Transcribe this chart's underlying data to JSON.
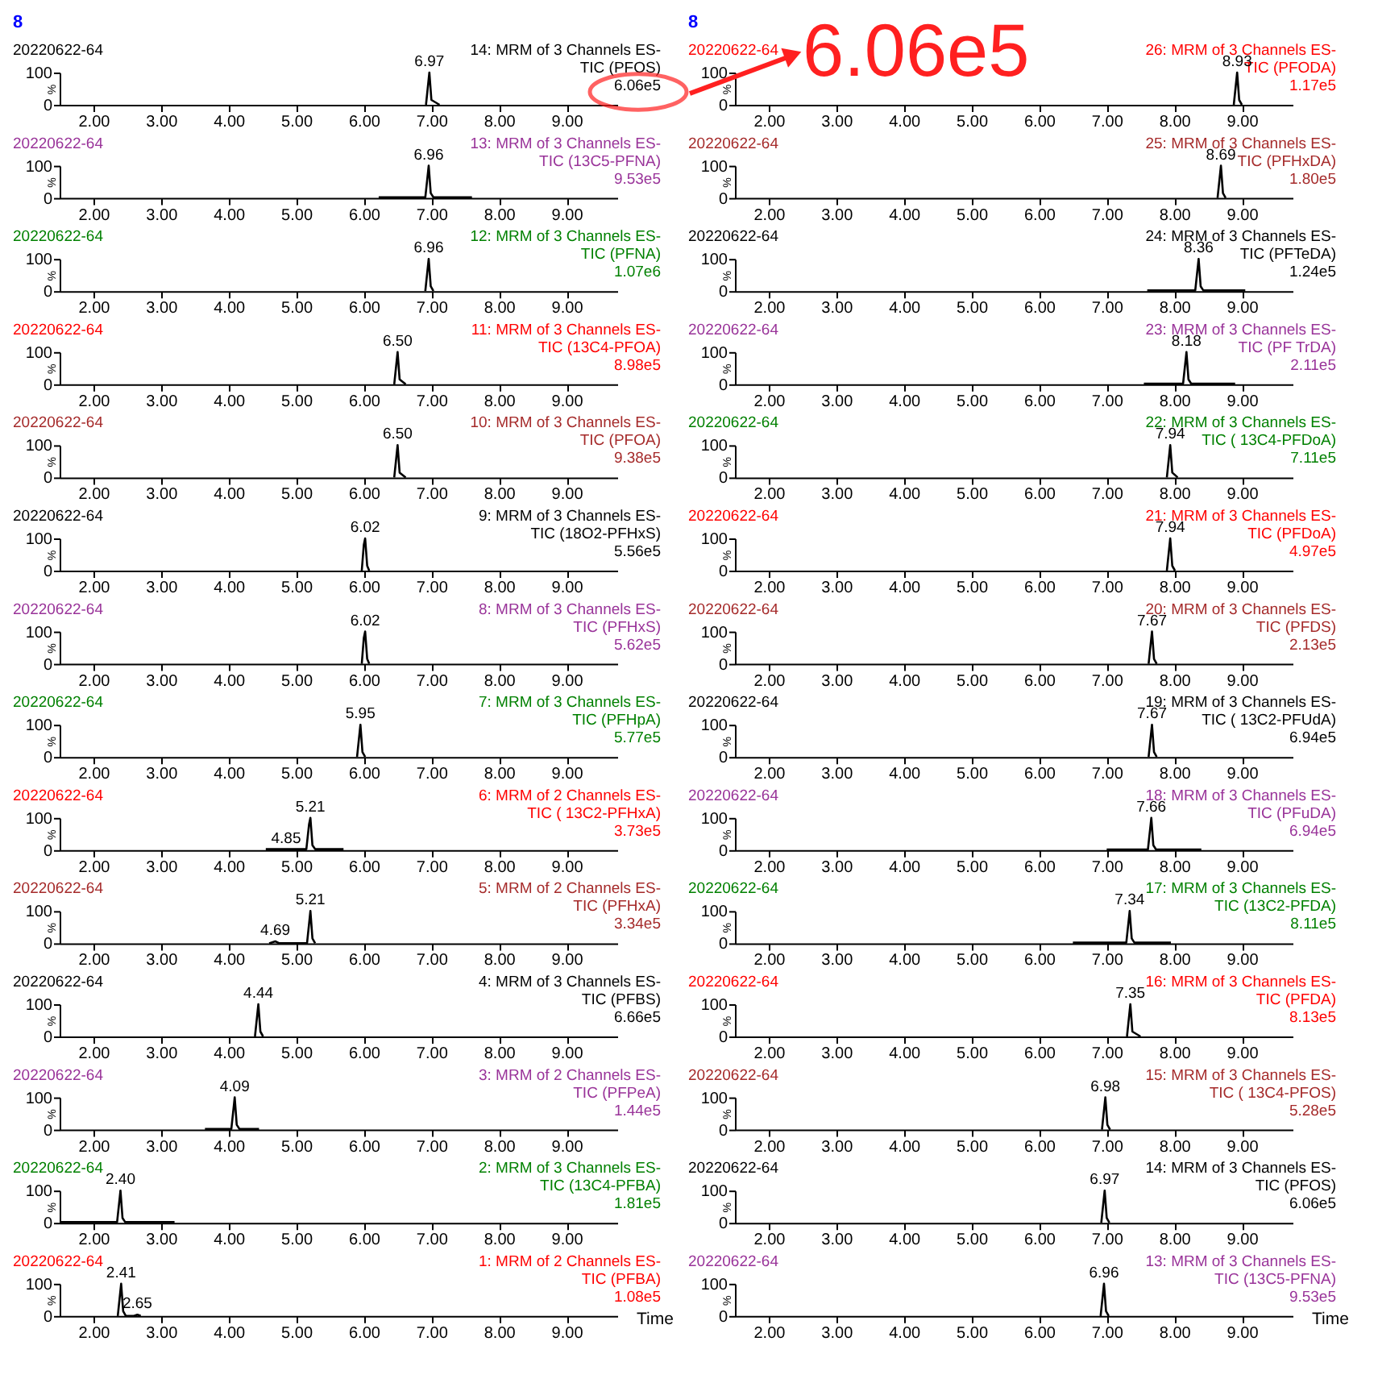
{
  "chart_data": [
    {
      "type": "line",
      "title": "20220622-64",
      "annotations": [
        "14: MRM of 3 Channels ES-",
        "TIC (PFOS)",
        "6.06e5",
        "8",
        {
          "text": "6.97",
          "x": 6.97,
          "y": 100
        }
      ],
      "series": [
        {
          "color": "#000000",
          "x": [
            6.92,
            6.96,
            6.97,
            7.0,
            7.12
          ],
          "values": [
            0,
            80,
            100,
            15,
            0
          ]
        }
      ],
      "xlim": [
        1.5,
        9.75
      ],
      "xticks": [
        {
          "value": 2,
          "label": "2.00"
        },
        {
          "value": 3,
          "label": "3.00"
        },
        {
          "value": 4,
          "label": "4.00"
        },
        {
          "value": 5,
          "label": "5.00"
        },
        {
          "value": 6,
          "label": "6.00"
        },
        {
          "value": 7,
          "label": "7.00"
        },
        {
          "value": 8,
          "label": "8.00"
        },
        {
          "value": 9,
          "label": "9.00"
        }
      ],
      "ylim": [
        0,
        100
      ],
      "yticks": [
        0,
        100
      ],
      "ylabel": "%"
    },
    {
      "type": "line",
      "title": "20220622-64",
      "annotations": [
        "13: MRM of 3 Channels ES-",
        "TIC (13C5-PFNA)",
        "9.53e5",
        {
          "text": "6.96",
          "x": 6.96,
          "y": 100
        }
      ],
      "series": [
        {
          "color": "#000000",
          "x": [
            6.22,
            6.91,
            6.95,
            6.96,
            6.99,
            7.03,
            7.6
          ],
          "values": [
            2,
            2,
            80,
            100,
            15,
            2,
            2
          ]
        }
      ],
      "xlim": [
        1.5,
        9.75
      ],
      "xticks": [
        {
          "value": 2,
          "label": "2.00"
        },
        {
          "value": 3,
          "label": "3.00"
        },
        {
          "value": 4,
          "label": "4.00"
        },
        {
          "value": 5,
          "label": "5.00"
        },
        {
          "value": 6,
          "label": "6.00"
        },
        {
          "value": 7,
          "label": "7.00"
        },
        {
          "value": 8,
          "label": "8.00"
        },
        {
          "value": 9,
          "label": "9.00"
        }
      ],
      "ylim": [
        0,
        100
      ],
      "yticks": [
        0,
        100
      ],
      "ylabel": "%"
    },
    {
      "type": "line",
      "title": "20220622-64",
      "annotations": [
        "12: MRM of 3 Channels ES-",
        "TIC (PFNA)",
        "1.07e6",
        {
          "text": "6.96",
          "x": 6.96,
          "y": 100
        }
      ],
      "series": [
        {
          "color": "#000000",
          "x": [
            6.91,
            6.95,
            6.96,
            6.99,
            7.03
          ],
          "values": [
            0,
            80,
            100,
            15,
            0
          ]
        }
      ],
      "xlim": [
        1.5,
        9.75
      ],
      "xticks": [
        {
          "value": 2,
          "label": "2.00"
        },
        {
          "value": 3,
          "label": "3.00"
        },
        {
          "value": 4,
          "label": "4.00"
        },
        {
          "value": 5,
          "label": "5.00"
        },
        {
          "value": 6,
          "label": "6.00"
        },
        {
          "value": 7,
          "label": "7.00"
        },
        {
          "value": 8,
          "label": "8.00"
        },
        {
          "value": 9,
          "label": "9.00"
        }
      ],
      "ylim": [
        0,
        100
      ],
      "yticks": [
        0,
        100
      ],
      "ylabel": "%"
    },
    {
      "type": "line",
      "title": "20220622-64",
      "annotations": [
        "11: MRM of 3 Channels ES-",
        "TIC (13C4-PFOA)",
        "8.98e5",
        {
          "text": "6.50",
          "x": 6.5,
          "y": 100
        }
      ],
      "series": [
        {
          "color": "#000000",
          "x": [
            6.45,
            6.49,
            6.5,
            6.53,
            6.62
          ],
          "values": [
            0,
            80,
            100,
            15,
            0
          ]
        }
      ],
      "xlim": [
        1.5,
        9.75
      ],
      "xticks": [
        {
          "value": 2,
          "label": "2.00"
        },
        {
          "value": 3,
          "label": "3.00"
        },
        {
          "value": 4,
          "label": "4.00"
        },
        {
          "value": 5,
          "label": "5.00"
        },
        {
          "value": 6,
          "label": "6.00"
        },
        {
          "value": 7,
          "label": "7.00"
        },
        {
          "value": 8,
          "label": "8.00"
        },
        {
          "value": 9,
          "label": "9.00"
        }
      ],
      "ylim": [
        0,
        100
      ],
      "yticks": [
        0,
        100
      ],
      "ylabel": "%"
    },
    {
      "type": "line",
      "title": "20220622-64",
      "annotations": [
        "10: MRM of 3 Channels ES-",
        "TIC (PFOA)",
        "9.38e5",
        {
          "text": "6.50",
          "x": 6.5,
          "y": 100
        }
      ],
      "series": [
        {
          "color": "#000000",
          "x": [
            6.45,
            6.49,
            6.5,
            6.53,
            6.62
          ],
          "values": [
            0,
            80,
            100,
            15,
            0
          ]
        }
      ],
      "xlim": [
        1.5,
        9.75
      ],
      "xticks": [
        {
          "value": 2,
          "label": "2.00"
        },
        {
          "value": 3,
          "label": "3.00"
        },
        {
          "value": 4,
          "label": "4.00"
        },
        {
          "value": 5,
          "label": "5.00"
        },
        {
          "value": 6,
          "label": "6.00"
        },
        {
          "value": 7,
          "label": "7.00"
        },
        {
          "value": 8,
          "label": "8.00"
        },
        {
          "value": 9,
          "label": "9.00"
        }
      ],
      "ylim": [
        0,
        100
      ],
      "yticks": [
        0,
        100
      ],
      "ylabel": "%"
    },
    {
      "type": "line",
      "title": "20220622-64",
      "annotations": [
        "9: MRM of 3 Channels ES-",
        "TIC (18O2-PFHxS)",
        "5.56e5",
        {
          "text": "6.02",
          "x": 6.02,
          "y": 100
        }
      ],
      "series": [
        {
          "color": "#000000",
          "x": [
            5.97,
            6.0,
            6.02,
            6.05,
            6.08
          ],
          "values": [
            0,
            80,
            100,
            15,
            0
          ]
        }
      ],
      "xlim": [
        1.5,
        9.75
      ],
      "xticks": [
        {
          "value": 2,
          "label": "2.00"
        },
        {
          "value": 3,
          "label": "3.00"
        },
        {
          "value": 4,
          "label": "4.00"
        },
        {
          "value": 5,
          "label": "5.00"
        },
        {
          "value": 6,
          "label": "6.00"
        },
        {
          "value": 7,
          "label": "7.00"
        },
        {
          "value": 8,
          "label": "8.00"
        },
        {
          "value": 9,
          "label": "9.00"
        }
      ],
      "ylim": [
        0,
        100
      ],
      "yticks": [
        0,
        100
      ],
      "ylabel": "%"
    },
    {
      "type": "line",
      "title": "20220622-64",
      "annotations": [
        "8: MRM of 3 Channels ES-",
        "TIC (PFHxS)",
        "5.62e5",
        {
          "text": "6.02",
          "x": 6.02,
          "y": 100
        }
      ],
      "series": [
        {
          "color": "#000000",
          "x": [
            5.97,
            6.0,
            6.02,
            6.05,
            6.08
          ],
          "values": [
            0,
            80,
            100,
            15,
            0
          ]
        }
      ],
      "xlim": [
        1.5,
        9.75
      ],
      "xticks": [
        {
          "value": 2,
          "label": "2.00"
        },
        {
          "value": 3,
          "label": "3.00"
        },
        {
          "value": 4,
          "label": "4.00"
        },
        {
          "value": 5,
          "label": "5.00"
        },
        {
          "value": 6,
          "label": "6.00"
        },
        {
          "value": 7,
          "label": "7.00"
        },
        {
          "value": 8,
          "label": "8.00"
        },
        {
          "value": 9,
          "label": "9.00"
        }
      ],
      "ylim": [
        0,
        100
      ],
      "yticks": [
        0,
        100
      ],
      "ylabel": "%"
    },
    {
      "type": "line",
      "title": "20220622-64",
      "annotations": [
        "7: MRM of 3 Channels ES-",
        "TIC (PFHpA)",
        "5.77e5",
        {
          "text": "5.95",
          "x": 5.95,
          "y": 100
        }
      ],
      "series": [
        {
          "color": "#000000",
          "x": [
            5.9,
            5.94,
            5.95,
            5.98,
            6.02
          ],
          "values": [
            0,
            80,
            100,
            15,
            0
          ]
        }
      ],
      "xlim": [
        1.5,
        9.75
      ],
      "xticks": [
        {
          "value": 2,
          "label": "2.00"
        },
        {
          "value": 3,
          "label": "3.00"
        },
        {
          "value": 4,
          "label": "4.00"
        },
        {
          "value": 5,
          "label": "5.00"
        },
        {
          "value": 6,
          "label": "6.00"
        },
        {
          "value": 7,
          "label": "7.00"
        },
        {
          "value": 8,
          "label": "8.00"
        },
        {
          "value": 9,
          "label": "9.00"
        }
      ],
      "ylim": [
        0,
        100
      ],
      "yticks": [
        0,
        100
      ],
      "ylabel": "%"
    },
    {
      "type": "line",
      "title": "20220622-64",
      "annotations": [
        "6: MRM of 2 Channels ES-",
        "TIC ( 13C2-PFHxA)",
        "3.73e5",
        {
          "text": "5.21",
          "x": 5.21,
          "y": 100
        },
        {
          "text": "4.85",
          "x": 4.85,
          "y": 3
        }
      ],
      "series": [
        {
          "color": "#000000",
          "x": [
            4.55,
            4.85,
            5.15,
            5.19,
            5.21,
            5.24,
            5.28,
            5.7
          ],
          "values": [
            3,
            3,
            3,
            80,
            100,
            15,
            3,
            3
          ]
        }
      ],
      "xlim": [
        1.5,
        9.75
      ],
      "xticks": [
        {
          "value": 2,
          "label": "2.00"
        },
        {
          "value": 3,
          "label": "3.00"
        },
        {
          "value": 4,
          "label": "4.00"
        },
        {
          "value": 5,
          "label": "5.00"
        },
        {
          "value": 6,
          "label": "6.00"
        },
        {
          "value": 7,
          "label": "7.00"
        },
        {
          "value": 8,
          "label": "8.00"
        },
        {
          "value": 9,
          "label": "9.00"
        }
      ],
      "ylim": [
        0,
        100
      ],
      "yticks": [
        0,
        100
      ],
      "ylabel": "%"
    },
    {
      "type": "line",
      "title": "20220622-64",
      "annotations": [
        "5: MRM of 2 Channels ES-",
        "TIC (PFHxA)",
        "3.34e5",
        {
          "text": "5.21",
          "x": 5.21,
          "y": 100
        },
        {
          "text": "4.69",
          "x": 4.69,
          "y": 6
        }
      ],
      "series": [
        {
          "color": "#000000",
          "x": [
            4.6,
            4.69,
            4.75,
            5.16,
            5.2,
            5.21,
            5.24,
            5.28
          ],
          "values": [
            0,
            6,
            0,
            0,
            80,
            100,
            15,
            0
          ]
        }
      ],
      "xlim": [
        1.5,
        9.75
      ],
      "xticks": [
        {
          "value": 2,
          "label": "2.00"
        },
        {
          "value": 3,
          "label": "3.00"
        },
        {
          "value": 4,
          "label": "4.00"
        },
        {
          "value": 5,
          "label": "5.00"
        },
        {
          "value": 6,
          "label": "6.00"
        },
        {
          "value": 7,
          "label": "7.00"
        },
        {
          "value": 8,
          "label": "8.00"
        },
        {
          "value": 9,
          "label": "9.00"
        }
      ],
      "ylim": [
        0,
        100
      ],
      "yticks": [
        0,
        100
      ],
      "ylabel": "%"
    },
    {
      "type": "line",
      "title": "20220622-64",
      "annotations": [
        "4: MRM of 3 Channels ES-",
        "TIC (PFBS)",
        "6.66e5",
        {
          "text": "4.44",
          "x": 4.44,
          "y": 100
        }
      ],
      "series": [
        {
          "color": "#000000",
          "x": [
            4.39,
            4.43,
            4.44,
            4.47,
            4.51
          ],
          "values": [
            0,
            80,
            100,
            15,
            0
          ]
        }
      ],
      "xlim": [
        1.5,
        9.75
      ],
      "xticks": [
        {
          "value": 2,
          "label": "2.00"
        },
        {
          "value": 3,
          "label": "3.00"
        },
        {
          "value": 4,
          "label": "4.00"
        },
        {
          "value": 5,
          "label": "5.00"
        },
        {
          "value": 6,
          "label": "6.00"
        },
        {
          "value": 7,
          "label": "7.00"
        },
        {
          "value": 8,
          "label": "8.00"
        },
        {
          "value": 9,
          "label": "9.00"
        }
      ],
      "ylim": [
        0,
        100
      ],
      "yticks": [
        0,
        100
      ],
      "ylabel": "%"
    },
    {
      "type": "line",
      "title": "20220622-64",
      "annotations": [
        "3: MRM of 2 Channels ES-",
        "TIC (PFPeA)",
        "1.44e5",
        {
          "text": "4.09",
          "x": 4.09,
          "y": 100
        }
      ],
      "series": [
        {
          "color": "#000000",
          "x": [
            3.65,
            4.04,
            4.08,
            4.09,
            4.12,
            4.16,
            4.45
          ],
          "values": [
            2,
            2,
            80,
            100,
            15,
            2,
            2
          ]
        }
      ],
      "xlim": [
        1.5,
        9.75
      ],
      "xticks": [
        {
          "value": 2,
          "label": "2.00"
        },
        {
          "value": 3,
          "label": "3.00"
        },
        {
          "value": 4,
          "label": "4.00"
        },
        {
          "value": 5,
          "label": "5.00"
        },
        {
          "value": 6,
          "label": "6.00"
        },
        {
          "value": 7,
          "label": "7.00"
        },
        {
          "value": 8,
          "label": "8.00"
        },
        {
          "value": 9,
          "label": "9.00"
        }
      ],
      "ylim": [
        0,
        100
      ],
      "yticks": [
        0,
        100
      ],
      "ylabel": "%"
    },
    {
      "type": "line",
      "title": "20220622-64",
      "annotations": [
        "2: MRM of 3 Channels ES-",
        "TIC (13C4-PFBA)",
        "1.81e5",
        {
          "text": "2.40",
          "x": 2.4,
          "y": 100
        }
      ],
      "series": [
        {
          "color": "#000000",
          "x": [
            1.5,
            2.35,
            2.39,
            2.4,
            2.43,
            2.47,
            3.2
          ],
          "values": [
            2,
            2,
            80,
            100,
            15,
            2,
            2
          ]
        }
      ],
      "xlim": [
        1.5,
        9.75
      ],
      "xticks": [
        {
          "value": 2,
          "label": "2.00"
        },
        {
          "value": 3,
          "label": "3.00"
        },
        {
          "value": 4,
          "label": "4.00"
        },
        {
          "value": 5,
          "label": "5.00"
        },
        {
          "value": 6,
          "label": "6.00"
        },
        {
          "value": 7,
          "label": "7.00"
        },
        {
          "value": 8,
          "label": "8.00"
        },
        {
          "value": 9,
          "label": "9.00"
        }
      ],
      "ylim": [
        0,
        100
      ],
      "yticks": [
        0,
        100
      ],
      "ylabel": "%"
    },
    {
      "type": "line",
      "title": "20220622-64",
      "annotations": [
        "1: MRM of 2 Channels ES-",
        "TIC (PFBA)",
        "1.08e5",
        {
          "text": "2.41",
          "x": 2.41,
          "y": 100
        },
        {
          "text": "2.65",
          "x": 2.65,
          "y": 4
        }
      ],
      "series": [
        {
          "color": "#000000",
          "x": [
            2.36,
            2.4,
            2.41,
            2.44,
            2.48,
            2.6,
            2.65,
            2.7
          ],
          "values": [
            0,
            80,
            100,
            15,
            0,
            0,
            4,
            0
          ]
        }
      ],
      "xlim": [
        1.5,
        9.75
      ],
      "xticks": [
        {
          "value": 2,
          "label": "2.00"
        },
        {
          "value": 3,
          "label": "3.00"
        },
        {
          "value": 4,
          "label": "4.00"
        },
        {
          "value": 5,
          "label": "5.00"
        },
        {
          "value": 6,
          "label": "6.00"
        },
        {
          "value": 7,
          "label": "7.00"
        },
        {
          "value": 8,
          "label": "8.00"
        },
        {
          "value": 9,
          "label": "9.00"
        }
      ],
      "ylim": [
        0,
        100
      ],
      "yticks": [
        0,
        100
      ],
      "ylabel": "%",
      "xlabel": "Time"
    },
    {
      "type": "line",
      "title": "20220622-64",
      "annotations": [
        "26: MRM of 3 Channels ES-",
        "TIC (PFODA)",
        "1.17e5",
        "8",
        "6.06e5",
        {
          "text": "8.93",
          "x": 8.93,
          "y": 100
        }
      ],
      "series": [
        {
          "color": "#000000",
          "x": [
            8.88,
            8.92,
            8.93,
            8.96,
            9.0
          ],
          "values": [
            0,
            80,
            100,
            15,
            0
          ]
        }
      ],
      "xlim": [
        1.5,
        9.75
      ],
      "xticks": [
        {
          "value": 2,
          "label": "2.00"
        },
        {
          "value": 3,
          "label": "3.00"
        },
        {
          "value": 4,
          "label": "4.00"
        },
        {
          "value": 5,
          "label": "5.00"
        },
        {
          "value": 6,
          "label": "6.00"
        },
        {
          "value": 7,
          "label": "7.00"
        },
        {
          "value": 8,
          "label": "8.00"
        },
        {
          "value": 9,
          "label": "9.00"
        }
      ],
      "ylim": [
        0,
        100
      ],
      "yticks": [
        0,
        100
      ],
      "ylabel": "%"
    },
    {
      "type": "line",
      "title": "20220622-64",
      "annotations": [
        "25: MRM of 3 Channels ES-",
        "TIC (PFHxDA)",
        "1.80e5",
        {
          "text": "8.69",
          "x": 8.69,
          "y": 100
        }
      ],
      "series": [
        {
          "color": "#000000",
          "x": [
            8.64,
            8.68,
            8.69,
            8.72,
            8.76
          ],
          "values": [
            0,
            80,
            100,
            15,
            0
          ]
        }
      ],
      "xlim": [
        1.5,
        9.75
      ],
      "xticks": [
        {
          "value": 2,
          "label": "2.00"
        },
        {
          "value": 3,
          "label": "3.00"
        },
        {
          "value": 4,
          "label": "4.00"
        },
        {
          "value": 5,
          "label": "5.00"
        },
        {
          "value": 6,
          "label": "6.00"
        },
        {
          "value": 7,
          "label": "7.00"
        },
        {
          "value": 8,
          "label": "8.00"
        },
        {
          "value": 9,
          "label": "9.00"
        }
      ],
      "ylim": [
        0,
        100
      ],
      "yticks": [
        0,
        100
      ],
      "ylabel": "%"
    },
    {
      "type": "line",
      "title": "20220622-64",
      "annotations": [
        "24: MRM of 3 Channels ES-",
        "TIC (PFTeDA)",
        "1.24e5",
        {
          "text": "8.36",
          "x": 8.36,
          "y": 100
        }
      ],
      "series": [
        {
          "color": "#000000",
          "x": [
            7.6,
            8.31,
            8.35,
            8.36,
            8.39,
            8.43,
            9.05
          ],
          "values": [
            2,
            2,
            80,
            100,
            15,
            2,
            2
          ]
        }
      ],
      "xlim": [
        1.5,
        9.75
      ],
      "xticks": [
        {
          "value": 2,
          "label": "2.00"
        },
        {
          "value": 3,
          "label": "3.00"
        },
        {
          "value": 4,
          "label": "4.00"
        },
        {
          "value": 5,
          "label": "5.00"
        },
        {
          "value": 6,
          "label": "6.00"
        },
        {
          "value": 7,
          "label": "7.00"
        },
        {
          "value": 8,
          "label": "8.00"
        },
        {
          "value": 9,
          "label": "9.00"
        }
      ],
      "ylim": [
        0,
        100
      ],
      "yticks": [
        0,
        100
      ],
      "ylabel": "%"
    },
    {
      "type": "line",
      "title": "20220622-64",
      "annotations": [
        "23: MRM of 3 Channels ES-",
        "TIC (PF TrDA)",
        "2.11e5",
        {
          "text": "8.18",
          "x": 8.18,
          "y": 100
        }
      ],
      "series": [
        {
          "color": "#000000",
          "x": [
            7.55,
            8.13,
            8.17,
            8.18,
            8.21,
            8.25,
            8.9
          ],
          "values": [
            2,
            2,
            80,
            100,
            15,
            2,
            2
          ]
        }
      ],
      "xlim": [
        1.5,
        9.75
      ],
      "xticks": [
        {
          "value": 2,
          "label": "2.00"
        },
        {
          "value": 3,
          "label": "3.00"
        },
        {
          "value": 4,
          "label": "4.00"
        },
        {
          "value": 5,
          "label": "5.00"
        },
        {
          "value": 6,
          "label": "6.00"
        },
        {
          "value": 7,
          "label": "7.00"
        },
        {
          "value": 8,
          "label": "8.00"
        },
        {
          "value": 9,
          "label": "9.00"
        }
      ],
      "ylim": [
        0,
        100
      ],
      "yticks": [
        0,
        100
      ],
      "ylabel": "%"
    },
    {
      "type": "line",
      "title": "20220622-64",
      "annotations": [
        "22: MRM of 3 Channels ES-",
        "TIC ( 13C4-PFDoA)",
        "7.11e5",
        {
          "text": "7.94",
          "x": 7.94,
          "y": 100
        }
      ],
      "series": [
        {
          "color": "#000000",
          "x": [
            7.89,
            7.93,
            7.94,
            7.97,
            8.05
          ],
          "values": [
            0,
            80,
            100,
            15,
            0
          ]
        }
      ],
      "xlim": [
        1.5,
        9.75
      ],
      "xticks": [
        {
          "value": 2,
          "label": "2.00"
        },
        {
          "value": 3,
          "label": "3.00"
        },
        {
          "value": 4,
          "label": "4.00"
        },
        {
          "value": 5,
          "label": "5.00"
        },
        {
          "value": 6,
          "label": "6.00"
        },
        {
          "value": 7,
          "label": "7.00"
        },
        {
          "value": 8,
          "label": "8.00"
        },
        {
          "value": 9,
          "label": "9.00"
        }
      ],
      "ylim": [
        0,
        100
      ],
      "yticks": [
        0,
        100
      ],
      "ylabel": "%"
    },
    {
      "type": "line",
      "title": "20220622-64",
      "annotations": [
        "21: MRM of 3 Channels ES-",
        "TIC (PFDoA)",
        "4.97e5",
        {
          "text": "7.94",
          "x": 7.94,
          "y": 100
        }
      ],
      "series": [
        {
          "color": "#000000",
          "x": [
            7.89,
            7.93,
            7.94,
            7.97,
            8.01
          ],
          "values": [
            0,
            80,
            100,
            15,
            0
          ]
        }
      ],
      "xlim": [
        1.5,
        9.75
      ],
      "xticks": [
        {
          "value": 2,
          "label": "2.00"
        },
        {
          "value": 3,
          "label": "3.00"
        },
        {
          "value": 4,
          "label": "4.00"
        },
        {
          "value": 5,
          "label": "5.00"
        },
        {
          "value": 6,
          "label": "6.00"
        },
        {
          "value": 7,
          "label": "7.00"
        },
        {
          "value": 8,
          "label": "8.00"
        },
        {
          "value": 9,
          "label": "9.00"
        }
      ],
      "ylim": [
        0,
        100
      ],
      "yticks": [
        0,
        100
      ],
      "ylabel": "%"
    },
    {
      "type": "line",
      "title": "20220622-64",
      "annotations": [
        "20: MRM of 3 Channels ES-",
        "TIC (PFDS)",
        "2.13e5",
        {
          "text": "7.67",
          "x": 7.67,
          "y": 100
        }
      ],
      "series": [
        {
          "color": "#000000",
          "x": [
            7.62,
            7.66,
            7.67,
            7.7,
            7.74
          ],
          "values": [
            0,
            80,
            100,
            15,
            0
          ]
        }
      ],
      "xlim": [
        1.5,
        9.75
      ],
      "xticks": [
        {
          "value": 2,
          "label": "2.00"
        },
        {
          "value": 3,
          "label": "3.00"
        },
        {
          "value": 4,
          "label": "4.00"
        },
        {
          "value": 5,
          "label": "5.00"
        },
        {
          "value": 6,
          "label": "6.00"
        },
        {
          "value": 7,
          "label": "7.00"
        },
        {
          "value": 8,
          "label": "8.00"
        },
        {
          "value": 9,
          "label": "9.00"
        }
      ],
      "ylim": [
        0,
        100
      ],
      "yticks": [
        0,
        100
      ],
      "ylabel": "%"
    },
    {
      "type": "line",
      "title": "20220622-64",
      "annotations": [
        "19: MRM of 3 Channels ES-",
        "TIC ( 13C2-PFUdA)",
        "6.94e5",
        {
          "text": "7.67",
          "x": 7.67,
          "y": 100
        }
      ],
      "series": [
        {
          "color": "#000000",
          "x": [
            7.62,
            7.66,
            7.67,
            7.7,
            7.74
          ],
          "values": [
            0,
            80,
            100,
            15,
            0
          ]
        }
      ],
      "xlim": [
        1.5,
        9.75
      ],
      "xticks": [
        {
          "value": 2,
          "label": "2.00"
        },
        {
          "value": 3,
          "label": "3.00"
        },
        {
          "value": 4,
          "label": "4.00"
        },
        {
          "value": 5,
          "label": "5.00"
        },
        {
          "value": 6,
          "label": "6.00"
        },
        {
          "value": 7,
          "label": "7.00"
        },
        {
          "value": 8,
          "label": "8.00"
        },
        {
          "value": 9,
          "label": "9.00"
        }
      ],
      "ylim": [
        0,
        100
      ],
      "yticks": [
        0,
        100
      ],
      "ylabel": "%"
    },
    {
      "type": "line",
      "title": "20220622-64",
      "annotations": [
        "18: MRM of 3 Channels ES-",
        "TIC (PFuDA)",
        "6.94e5",
        {
          "text": "7.66",
          "x": 7.66,
          "y": 100
        }
      ],
      "series": [
        {
          "color": "#000000",
          "x": [
            7.0,
            7.61,
            7.65,
            7.66,
            7.69,
            7.73,
            8.4
          ],
          "values": [
            2,
            2,
            80,
            100,
            15,
            2,
            2
          ]
        }
      ],
      "xlim": [
        1.5,
        9.75
      ],
      "xticks": [
        {
          "value": 2,
          "label": "2.00"
        },
        {
          "value": 3,
          "label": "3.00"
        },
        {
          "value": 4,
          "label": "4.00"
        },
        {
          "value": 5,
          "label": "5.00"
        },
        {
          "value": 6,
          "label": "6.00"
        },
        {
          "value": 7,
          "label": "7.00"
        },
        {
          "value": 8,
          "label": "8.00"
        },
        {
          "value": 9,
          "label": "9.00"
        }
      ],
      "ylim": [
        0,
        100
      ],
      "yticks": [
        0,
        100
      ],
      "ylabel": "%"
    },
    {
      "type": "line",
      "title": "20220622-64",
      "annotations": [
        "17: MRM of 3 Channels ES-",
        "TIC (13C2-PFDA)",
        "8.11e5",
        {
          "text": "7.34",
          "x": 7.34,
          "y": 100
        }
      ],
      "series": [
        {
          "color": "#000000",
          "x": [
            6.5,
            7.29,
            7.33,
            7.34,
            7.37,
            7.41,
            7.95
          ],
          "values": [
            2,
            2,
            80,
            100,
            15,
            2,
            2
          ]
        }
      ],
      "xlim": [
        1.5,
        9.75
      ],
      "xticks": [
        {
          "value": 2,
          "label": "2.00"
        },
        {
          "value": 3,
          "label": "3.00"
        },
        {
          "value": 4,
          "label": "4.00"
        },
        {
          "value": 5,
          "label": "5.00"
        },
        {
          "value": 6,
          "label": "6.00"
        },
        {
          "value": 7,
          "label": "7.00"
        },
        {
          "value": 8,
          "label": "8.00"
        },
        {
          "value": 9,
          "label": "9.00"
        }
      ],
      "ylim": [
        0,
        100
      ],
      "yticks": [
        0,
        100
      ],
      "ylabel": "%"
    },
    {
      "type": "line",
      "title": "20220622-64",
      "annotations": [
        "16: MRM of 3 Channels ES-",
        "TIC (PFDA)",
        "8.13e5",
        {
          "text": "7.35",
          "x": 7.35,
          "y": 100
        }
      ],
      "series": [
        {
          "color": "#000000",
          "x": [
            7.3,
            7.34,
            7.35,
            7.38,
            7.5
          ],
          "values": [
            0,
            80,
            100,
            15,
            0
          ]
        }
      ],
      "xlim": [
        1.5,
        9.75
      ],
      "xticks": [
        {
          "value": 2,
          "label": "2.00"
        },
        {
          "value": 3,
          "label": "3.00"
        },
        {
          "value": 4,
          "label": "4.00"
        },
        {
          "value": 5,
          "label": "5.00"
        },
        {
          "value": 6,
          "label": "6.00"
        },
        {
          "value": 7,
          "label": "7.00"
        },
        {
          "value": 8,
          "label": "8.00"
        },
        {
          "value": 9,
          "label": "9.00"
        }
      ],
      "ylim": [
        0,
        100
      ],
      "yticks": [
        0,
        100
      ],
      "ylabel": "%"
    },
    {
      "type": "line",
      "title": "20220622-64",
      "annotations": [
        "15: MRM of 3 Channels ES-",
        "TIC ( 13C4-PFOS)",
        "5.28e5",
        {
          "text": "6.98",
          "x": 6.98,
          "y": 100
        }
      ],
      "series": [
        {
          "color": "#000000",
          "x": [
            6.93,
            6.97,
            6.98,
            7.01,
            7.05
          ],
          "values": [
            0,
            80,
            100,
            15,
            0
          ]
        }
      ],
      "xlim": [
        1.5,
        9.75
      ],
      "xticks": [
        {
          "value": 2,
          "label": "2.00"
        },
        {
          "value": 3,
          "label": "3.00"
        },
        {
          "value": 4,
          "label": "4.00"
        },
        {
          "value": 5,
          "label": "5.00"
        },
        {
          "value": 6,
          "label": "6.00"
        },
        {
          "value": 7,
          "label": "7.00"
        },
        {
          "value": 8,
          "label": "8.00"
        },
        {
          "value": 9,
          "label": "9.00"
        }
      ],
      "ylim": [
        0,
        100
      ],
      "yticks": [
        0,
        100
      ],
      "ylabel": "%"
    },
    {
      "type": "line",
      "title": "20220622-64",
      "annotations": [
        "14: MRM of 3 Channels ES-",
        "TIC (PFOS)",
        "6.06e5",
        {
          "text": "6.97",
          "x": 6.97,
          "y": 100
        }
      ],
      "series": [
        {
          "color": "#000000",
          "x": [
            6.92,
            6.96,
            6.97,
            7.0,
            7.04
          ],
          "values": [
            0,
            80,
            100,
            15,
            0
          ]
        }
      ],
      "xlim": [
        1.5,
        9.75
      ],
      "xticks": [
        {
          "value": 2,
          "label": "2.00"
        },
        {
          "value": 3,
          "label": "3.00"
        },
        {
          "value": 4,
          "label": "4.00"
        },
        {
          "value": 5,
          "label": "5.00"
        },
        {
          "value": 6,
          "label": "6.00"
        },
        {
          "value": 7,
          "label": "7.00"
        },
        {
          "value": 8,
          "label": "8.00"
        },
        {
          "value": 9,
          "label": "9.00"
        }
      ],
      "ylim": [
        0,
        100
      ],
      "yticks": [
        0,
        100
      ],
      "ylabel": "%"
    },
    {
      "type": "line",
      "title": "20220622-64",
      "annotations": [
        "13: MRM of 3 Channels ES-",
        "TIC (13C5-PFNA)",
        "9.53e5",
        {
          "text": "6.96",
          "x": 6.96,
          "y": 100
        }
      ],
      "series": [
        {
          "color": "#000000",
          "x": [
            6.91,
            6.95,
            6.96,
            6.99,
            7.03
          ],
          "values": [
            0,
            80,
            100,
            15,
            0
          ]
        }
      ],
      "xlim": [
        1.5,
        9.75
      ],
      "xticks": [
        {
          "value": 2,
          "label": "2.00"
        },
        {
          "value": 3,
          "label": "3.00"
        },
        {
          "value": 4,
          "label": "4.00"
        },
        {
          "value": 5,
          "label": "5.00"
        },
        {
          "value": 6,
          "label": "6.00"
        },
        {
          "value": 7,
          "label": "7.00"
        },
        {
          "value": 8,
          "label": "8.00"
        },
        {
          "value": 9,
          "label": "9.00"
        }
      ],
      "ylim": [
        0,
        100
      ],
      "yticks": [
        0,
        100
      ],
      "ylabel": "%",
      "xlabel": "Time"
    }
  ]
}
